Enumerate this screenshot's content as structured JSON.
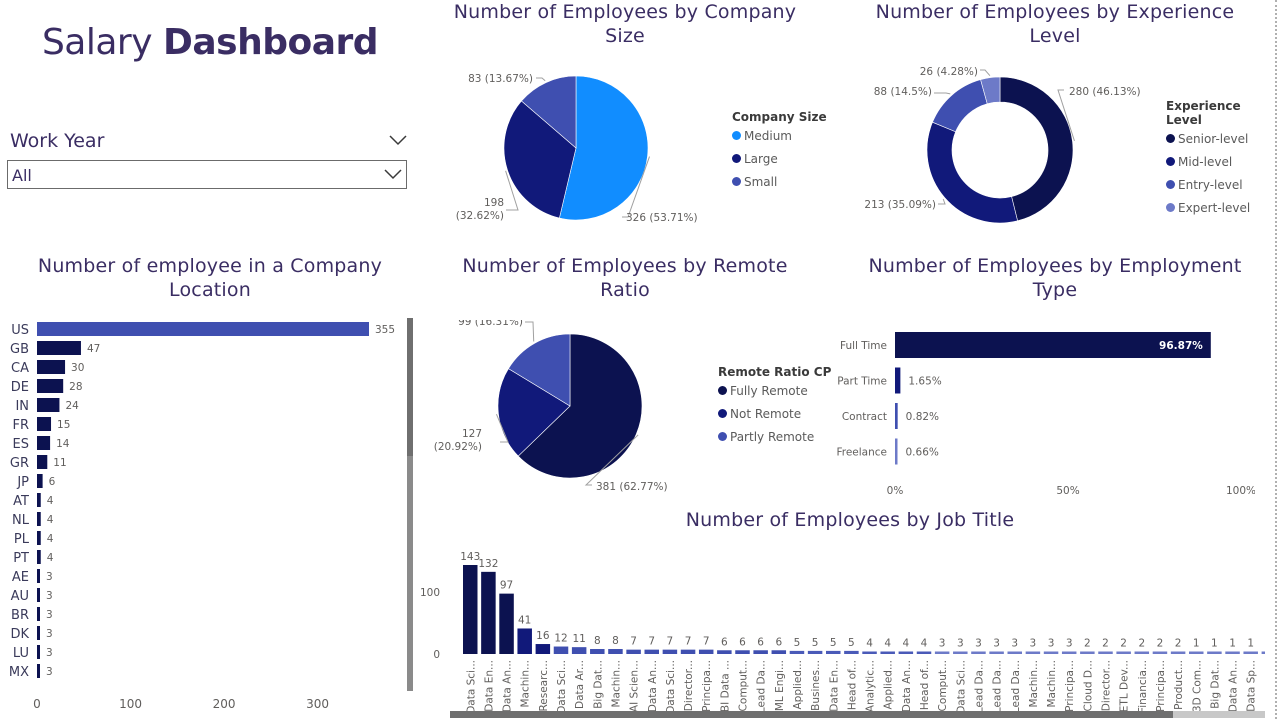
{
  "header": {
    "title_light": "Salary",
    "title_bold": "Dashboard"
  },
  "slicer": {
    "label": "Work Year",
    "value": "All"
  },
  "colors": {
    "navy": "#0c1250",
    "mid": "#11197a",
    "indigo": "#3f4fb0",
    "periwinkle": "#6d7ac8",
    "sky": "#118dff"
  },
  "chart_data": [
    {
      "id": "company_size",
      "type": "pie",
      "title": "Number of Employees by Company Size",
      "legend_title": "Company Size",
      "legend_position": "right",
      "categories": [
        "Medium",
        "Large",
        "Small"
      ],
      "values": [
        326,
        198,
        83
      ],
      "percents": [
        "53.71%",
        "32.62%",
        "13.67%"
      ],
      "labels": [
        "326 (53.71%)",
        "198 (32.62%)",
        "83 (13.67%)"
      ],
      "colors": [
        "#118dff",
        "#11197a",
        "#3f4fb0"
      ]
    },
    {
      "id": "experience_level",
      "type": "pie",
      "donut": true,
      "title": "Number of Employees by Experience Level",
      "legend_title": "Experience Level",
      "legend_position": "right",
      "categories": [
        "Senior-level",
        "Mid-level",
        "Entry-level",
        "Expert-level"
      ],
      "values": [
        280,
        213,
        88,
        26
      ],
      "percents": [
        "46.13%",
        "35.09%",
        "14.5%",
        "4.28%"
      ],
      "labels": [
        "280 (46.13%)",
        "213 (35.09%)",
        "88 (14.5%)",
        "26 (4.28%)"
      ],
      "colors": [
        "#0c1250",
        "#11197a",
        "#3f4fb0",
        "#6d7ac8"
      ]
    },
    {
      "id": "company_location",
      "type": "bar",
      "orientation": "horizontal",
      "title": "Number of employee in a Company Location",
      "categories": [
        "US",
        "GB",
        "CA",
        "DE",
        "IN",
        "FR",
        "ES",
        "GR",
        "JP",
        "AT",
        "NL",
        "PL",
        "PT",
        "AE",
        "AU",
        "BR",
        "DK",
        "LU",
        "MX"
      ],
      "values": [
        355,
        47,
        30,
        28,
        24,
        15,
        14,
        11,
        6,
        4,
        4,
        4,
        4,
        3,
        3,
        3,
        3,
        3,
        3
      ],
      "xlim": [
        0,
        380
      ],
      "xticks": [
        "0",
        "100",
        "200",
        "300"
      ],
      "xtick_values": [
        0,
        100,
        200,
        300
      ],
      "highlight_color": "#3f4fb0",
      "bar_color": "#0c1250"
    },
    {
      "id": "remote_ratio",
      "type": "pie",
      "title": "Number of Employees by Remote Ratio",
      "legend_title": "Remote Ratio CP",
      "legend_position": "right",
      "categories": [
        "Fully Remote",
        "Not Remote",
        "Partly Remote"
      ],
      "values": [
        381,
        127,
        99
      ],
      "percents": [
        "62.77%",
        "20.92%",
        "16.31%"
      ],
      "labels": [
        "381 (62.77%)",
        "127 (20.92%)",
        "99 (16.31%)"
      ],
      "colors": [
        "#0c1250",
        "#11197a",
        "#3f4fb0"
      ]
    },
    {
      "id": "employment_type",
      "type": "bar",
      "orientation": "horizontal",
      "title": "Number of Employees by Employment Type",
      "categories": [
        "Full Time",
        "Part Time",
        "Contract",
        "Freelance"
      ],
      "values": [
        96.87,
        1.65,
        0.82,
        0.66
      ],
      "labels": [
        "96.87%",
        "1.65%",
        "0.82%",
        "0.66%"
      ],
      "xlim": [
        0,
        100
      ],
      "xticks": [
        "0%",
        "50%",
        "100%"
      ],
      "xtick_values": [
        0,
        50,
        100
      ],
      "colors": [
        "#0c1250",
        "#11197a",
        "#3f4fb0",
        "#6d7ac8"
      ]
    },
    {
      "id": "job_title",
      "type": "bar",
      "orientation": "vertical",
      "title": "Number of Employees by Job Title",
      "categories": [
        "Data Sci...",
        "Data En...",
        "Data An...",
        "Machin...",
        "Researc...",
        "Data Sci...",
        "Data Ar...",
        "Big Dat...",
        "Machin...",
        "AI Scien...",
        "Data An...",
        "Data Sci...",
        "Director...",
        "Principa...",
        "BI Data ...",
        "Comput...",
        "Lead Da...",
        "ML Engi...",
        "Applied...",
        "Busines...",
        "Data En...",
        "Head of...",
        "Analytic...",
        "Applied...",
        "Data An...",
        "Head of...",
        "Comput...",
        "Data Sci...",
        "Lead Da...",
        "Lead Da...",
        "Lead Da...",
        "Machin...",
        "Machin...",
        "Principa...",
        "Cloud D...",
        "Director...",
        "ETL Dev...",
        "Financia...",
        "Principa...",
        "Product...",
        "3D Com...",
        "Big Dat...",
        "Data An...",
        "Data Sp...",
        "Finance..."
      ],
      "values": [
        143,
        132,
        97,
        41,
        16,
        12,
        11,
        8,
        8,
        7,
        7,
        7,
        7,
        7,
        6,
        6,
        6,
        6,
        5,
        5,
        5,
        5,
        4,
        4,
        4,
        4,
        3,
        3,
        3,
        3,
        3,
        3,
        3,
        3,
        2,
        2,
        2,
        2,
        2,
        2,
        1,
        1,
        1,
        1,
        1
      ],
      "ylim": [
        0,
        150
      ],
      "yticks": [
        "0",
        "100"
      ],
      "ytick_values": [
        0,
        100
      ]
    }
  ]
}
